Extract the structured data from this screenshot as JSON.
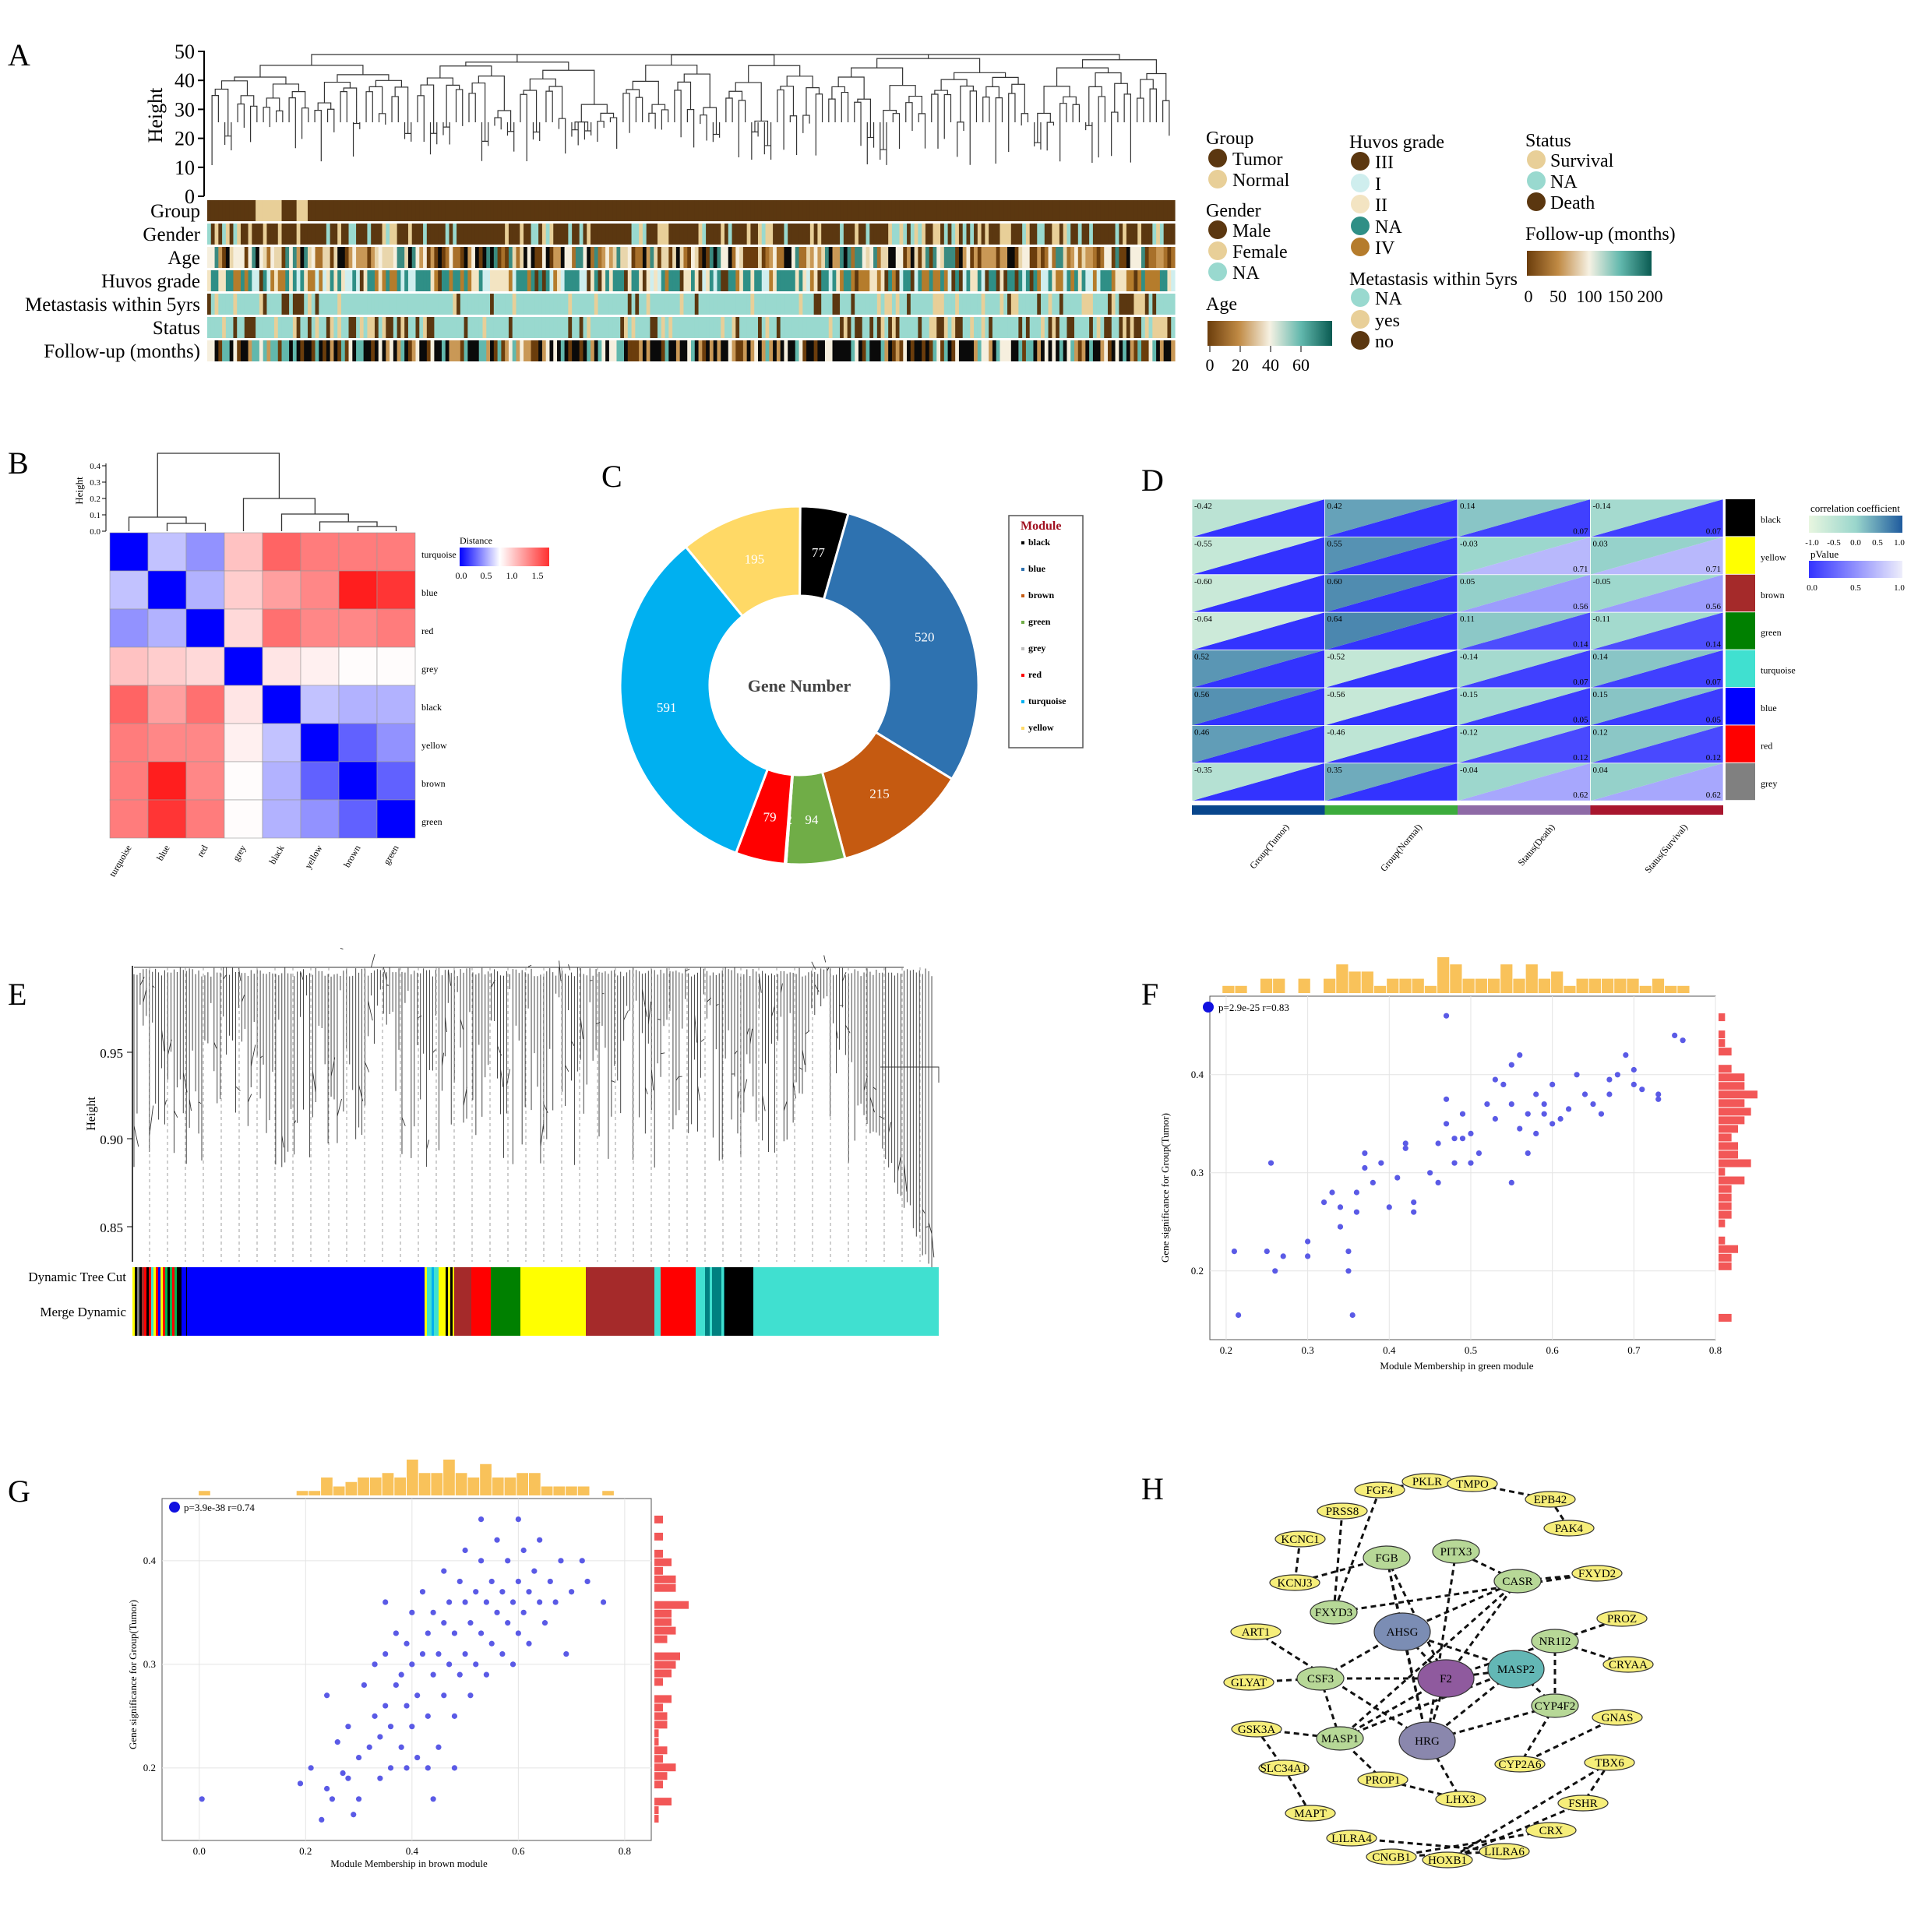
{
  "panels": {
    "A": {
      "label": "A",
      "height_axis": {
        "label": "Height",
        "ticks": [
          "0",
          "10",
          "20",
          "30",
          "40",
          "50"
        ]
      },
      "track_labels": [
        "Group",
        "Gender",
        "Age",
        "Huvos grade",
        "Metastasis within 5yrs",
        "Status",
        "Follow-up (months)"
      ],
      "legends": {
        "group": {
          "title": "Group",
          "items": [
            {
              "label": "Tumor",
              "color": "#5b3710"
            },
            {
              "label": "Normal",
              "color": "#e8cf98"
            }
          ]
        },
        "gender": {
          "title": "Gender",
          "items": [
            {
              "label": "Male",
              "color": "#5b3710"
            },
            {
              "label": "Female",
              "color": "#e8cf98"
            },
            {
              "label": "NA",
              "color": "#99d9cf"
            }
          ]
        },
        "age": {
          "title": "Age",
          "ticks": [
            "0",
            "20",
            "40",
            "60"
          ]
        },
        "huvos": {
          "title": "Huvos grade",
          "items": [
            {
              "label": "III",
              "color": "#5b3710"
            },
            {
              "label": "I",
              "color": "#cfeeee"
            },
            {
              "label": "II",
              "color": "#f3e4c2"
            },
            {
              "label": "NA",
              "color": "#2f8f86"
            },
            {
              "label": "IV",
              "color": "#b57c2c"
            }
          ]
        },
        "metastasis": {
          "title": "Metastasis within 5yrs",
          "items": [
            {
              "label": "NA",
              "color": "#99d9cf"
            },
            {
              "label": "yes",
              "color": "#e8cf98"
            },
            {
              "label": "no",
              "color": "#5b3710"
            }
          ]
        },
        "status": {
          "title": "Status",
          "items": [
            {
              "label": "Survival",
              "color": "#e8cf98"
            },
            {
              "label": "NA",
              "color": "#99d9cf"
            },
            {
              "label": "Death",
              "color": "#5b3710"
            }
          ]
        },
        "followup": {
          "title": "Follow-up (months)",
          "ticks": [
            "0",
            "50",
            "100",
            "150",
            "200"
          ]
        }
      }
    },
    "B": {
      "label": "B",
      "height_axis": {
        "label": "Height",
        "ticks": [
          "0.0",
          "0.1",
          "0.2",
          "0.3",
          "0.4"
        ]
      },
      "legend_title": "Distance",
      "legend_ticks": [
        "0.0",
        "0.5",
        "1.0",
        "1.5"
      ]
    },
    "C": {
      "label": "C",
      "center_label": "Gene Number",
      "legend_title": "Module"
    },
    "D": {
      "label": "D",
      "columns": [
        "Group(Tumor)",
        "Group(Normal)",
        "Status(Death)",
        "Status(Survival)"
      ],
      "legend_title_1": "correlation coefficient",
      "legend_ticks_1": [
        "-1.0",
        "-0.5",
        "0.0",
        "0.5",
        "1.0"
      ],
      "legend_title_2": "pValue",
      "legend_ticks_2": [
        "0.0",
        "0.5",
        "1.0"
      ]
    },
    "E": {
      "label": "E",
      "y_label": "Height",
      "y_ticks": [
        "0.85",
        "0.90",
        "0.95"
      ],
      "row_labels": [
        "Dynamic Tree Cut",
        "Merge Dynamic"
      ]
    },
    "F": {
      "label": "F",
      "legend": "p=2.9e-25 r=0.83",
      "xlabel": "Module Membership in green module",
      "ylabel": "Gene significance for Group(Tumor)"
    },
    "G": {
      "label": "G",
      "legend": "p=3.9e-38 r=0.74",
      "xlabel": "Module Membership in brown module",
      "ylabel": "Gene significance for Group(Tumor)"
    },
    "H": {
      "label": "H",
      "nodes": [
        "FGF4",
        "PKLR",
        "TMPO",
        "EPB42",
        "PRSS8",
        "PAK4",
        "KCNC1",
        "FGB",
        "PITX3",
        "CASR",
        "FXYD2",
        "KCNJ3",
        "FXYD3",
        "AHSG",
        "PROZ",
        "ART1",
        "NR1I2",
        "CRYAA",
        "CSF3",
        "F2",
        "MASP2",
        "GLYAT",
        "CYP4F2",
        "GSK3A",
        "HRG",
        "GNAS",
        "MASP1",
        "SLC34A1",
        "PROP1",
        "CYP2A6",
        "TBX6",
        "LHX3",
        "FSHR",
        "MAPT",
        "CRX",
        "LILRA4",
        "CNGB1",
        "HOXB1",
        "LILRA6"
      ]
    }
  },
  "chart_data": [
    {
      "panel": "C",
      "type": "pie",
      "title": "Gene Number",
      "legend_title": "Module",
      "categories": [
        "black",
        "blue",
        "brown",
        "green",
        "grey",
        "red",
        "turquoise",
        "yellow"
      ],
      "values": [
        77,
        520,
        215,
        94,
        2,
        79,
        591,
        195
      ],
      "colors": [
        "#000000",
        "#2e72b0",
        "#c55a11",
        "#70ad47",
        "#bfbfbf",
        "#ff0000",
        "#00b0f0",
        "#ffd966"
      ]
    },
    {
      "panel": "B",
      "type": "heatmap",
      "rows": [
        "turquoise",
        "blue",
        "red",
        "grey",
        "black",
        "yellow",
        "brown",
        "green"
      ],
      "columns": [
        "turquoise",
        "blue",
        "red",
        "grey",
        "black",
        "yellow",
        "brown",
        "green"
      ],
      "values": [
        [
          0.0,
          0.6,
          0.45,
          1.05,
          1.45,
          1.35,
          1.35,
          1.35
        ],
        [
          0.6,
          0.0,
          0.55,
          1.0,
          1.2,
          1.3,
          1.75,
          1.65
        ],
        [
          0.45,
          0.55,
          0.0,
          0.95,
          1.4,
          1.3,
          1.3,
          1.35
        ],
        [
          1.05,
          1.0,
          0.95,
          0.0,
          0.9,
          0.85,
          0.8,
          0.8
        ],
        [
          1.45,
          1.2,
          1.4,
          0.9,
          0.0,
          0.6,
          0.55,
          0.55
        ],
        [
          1.35,
          1.3,
          1.3,
          0.85,
          0.6,
          0.0,
          0.3,
          0.45
        ],
        [
          1.35,
          1.75,
          1.3,
          0.8,
          0.55,
          0.3,
          0.0,
          0.3
        ],
        [
          1.35,
          1.65,
          1.35,
          0.8,
          0.55,
          0.45,
          0.3,
          0.0
        ]
      ]
    },
    {
      "panel": "D",
      "type": "heatmap",
      "rows": [
        "black",
        "yellow",
        "brown",
        "green",
        "turquoise",
        "blue",
        "red",
        "grey"
      ],
      "columns": [
        "Group(Tumor)",
        "Group(Normal)",
        "Status(Death)",
        "Status(Survival)"
      ],
      "correlation": [
        [
          -0.42,
          0.42,
          0.14,
          -0.14
        ],
        [
          -0.55,
          0.55,
          -0.03,
          0.03
        ],
        [
          -0.6,
          0.6,
          0.05,
          -0.05
        ],
        [
          -0.64,
          0.64,
          0.11,
          -0.11
        ],
        [
          0.52,
          -0.52,
          -0.14,
          0.14
        ],
        [
          0.56,
          -0.56,
          -0.15,
          0.15
        ],
        [
          0.46,
          -0.46,
          -0.12,
          0.12
        ],
        [
          -0.35,
          0.35,
          -0.04,
          0.04
        ]
      ],
      "pvalue_labels": [
        [
          "",
          "",
          "0.07",
          "0.07"
        ],
        [
          "",
          "",
          "0.71",
          "0.71"
        ],
        [
          "",
          "",
          "0.56",
          "0.56"
        ],
        [
          "",
          "",
          "0.14",
          "0.14"
        ],
        [
          "",
          "",
          "0.07",
          "0.07"
        ],
        [
          "",
          "",
          "0.05",
          "0.05"
        ],
        [
          "",
          "",
          "0.12",
          "0.12"
        ],
        [
          "",
          "",
          "0.62",
          "0.62"
        ]
      ],
      "row_colors": [
        "#000000",
        "#ffff00",
        "#a52a2a",
        "#008000",
        "#40e0d0",
        "#0000ff",
        "#ff0000",
        "#808080"
      ],
      "column_bar_colors": [
        "#08468c",
        "#3cab3c",
        "#8e6aa6",
        "#a8162e"
      ]
    },
    {
      "panel": "F",
      "type": "scatter",
      "xlabel": "Module Membership in green module",
      "ylabel": "Gene significance for Group(Tumor)",
      "xlim": [
        0.18,
        0.8
      ],
      "ylim": [
        0.13,
        0.48
      ],
      "x_ticks": [
        0.2,
        0.3,
        0.4,
        0.5,
        0.6,
        0.7,
        0.8
      ],
      "y_ticks": [
        0.2,
        0.3,
        0.4
      ],
      "legend": "p=2.9e-25 r=0.83",
      "points": [
        [
          0.21,
          0.22
        ],
        [
          0.215,
          0.155
        ],
        [
          0.25,
          0.22
        ],
        [
          0.26,
          0.2
        ],
        [
          0.255,
          0.31
        ],
        [
          0.27,
          0.215
        ],
        [
          0.3,
          0.23
        ],
        [
          0.3,
          0.215
        ],
        [
          0.32,
          0.27
        ],
        [
          0.33,
          0.28
        ],
        [
          0.34,
          0.265
        ],
        [
          0.34,
          0.245
        ],
        [
          0.35,
          0.22
        ],
        [
          0.35,
          0.2
        ],
        [
          0.355,
          0.155
        ],
        [
          0.36,
          0.28
        ],
        [
          0.36,
          0.26
        ],
        [
          0.37,
          0.32
        ],
        [
          0.37,
          0.305
        ],
        [
          0.38,
          0.29
        ],
        [
          0.39,
          0.31
        ],
        [
          0.4,
          0.265
        ],
        [
          0.41,
          0.295
        ],
        [
          0.42,
          0.325
        ],
        [
          0.42,
          0.33
        ],
        [
          0.43,
          0.27
        ],
        [
          0.43,
          0.26
        ],
        [
          0.45,
          0.3
        ],
        [
          0.46,
          0.29
        ],
        [
          0.46,
          0.33
        ],
        [
          0.47,
          0.35
        ],
        [
          0.47,
          0.375
        ],
        [
          0.48,
          0.31
        ],
        [
          0.48,
          0.335
        ],
        [
          0.49,
          0.335
        ],
        [
          0.49,
          0.36
        ],
        [
          0.5,
          0.31
        ],
        [
          0.5,
          0.34
        ],
        [
          0.51,
          0.32
        ],
        [
          0.52,
          0.37
        ],
        [
          0.53,
          0.355
        ],
        [
          0.54,
          0.39
        ],
        [
          0.55,
          0.41
        ],
        [
          0.55,
          0.37
        ],
        [
          0.56,
          0.42
        ],
        [
          0.56,
          0.345
        ],
        [
          0.57,
          0.36
        ],
        [
          0.57,
          0.32
        ],
        [
          0.58,
          0.38
        ],
        [
          0.58,
          0.34
        ],
        [
          0.59,
          0.37
        ],
        [
          0.59,
          0.36
        ],
        [
          0.6,
          0.35
        ],
        [
          0.6,
          0.39
        ],
        [
          0.61,
          0.355
        ],
        [
          0.62,
          0.365
        ],
        [
          0.63,
          0.4
        ],
        [
          0.64,
          0.38
        ],
        [
          0.65,
          0.37
        ],
        [
          0.66,
          0.36
        ],
        [
          0.67,
          0.395
        ],
        [
          0.67,
          0.38
        ],
        [
          0.68,
          0.4
        ],
        [
          0.69,
          0.42
        ],
        [
          0.7,
          0.39
        ],
        [
          0.7,
          0.405
        ],
        [
          0.71,
          0.385
        ],
        [
          0.73,
          0.375
        ],
        [
          0.73,
          0.38
        ],
        [
          0.75,
          0.44
        ],
        [
          0.76,
          0.435
        ],
        [
          0.47,
          0.46
        ],
        [
          0.55,
          0.29
        ],
        [
          0.53,
          0.395
        ]
      ]
    },
    {
      "panel": "G",
      "type": "scatter",
      "xlabel": "Module Membership in brown module",
      "ylabel": "Gene significance for Group(Tumor)",
      "xlim": [
        -0.07,
        0.85
      ],
      "ylim": [
        0.13,
        0.46
      ],
      "x_ticks": [
        0.0,
        0.2,
        0.4,
        0.6,
        0.8
      ],
      "y_ticks": [
        0.2,
        0.3,
        0.4
      ],
      "legend": "p=3.9e-38 r=0.74",
      "points": [
        [
          0.005,
          0.17
        ],
        [
          0.19,
          0.185
        ],
        [
          0.21,
          0.2
        ],
        [
          0.23,
          0.15
        ],
        [
          0.24,
          0.18
        ],
        [
          0.25,
          0.17
        ],
        [
          0.24,
          0.27
        ],
        [
          0.26,
          0.225
        ],
        [
          0.27,
          0.195
        ],
        [
          0.28,
          0.24
        ],
        [
          0.29,
          0.155
        ],
        [
          0.3,
          0.21
        ],
        [
          0.3,
          0.17
        ],
        [
          0.31,
          0.28
        ],
        [
          0.32,
          0.22
        ],
        [
          0.33,
          0.25
        ],
        [
          0.33,
          0.3
        ],
        [
          0.34,
          0.19
        ],
        [
          0.34,
          0.23
        ],
        [
          0.35,
          0.26
        ],
        [
          0.35,
          0.31
        ],
        [
          0.36,
          0.2
        ],
        [
          0.36,
          0.24
        ],
        [
          0.37,
          0.28
        ],
        [
          0.37,
          0.33
        ],
        [
          0.38,
          0.22
        ],
        [
          0.38,
          0.29
        ],
        [
          0.39,
          0.26
        ],
        [
          0.39,
          0.32
        ],
        [
          0.4,
          0.24
        ],
        [
          0.4,
          0.3
        ],
        [
          0.4,
          0.35
        ],
        [
          0.41,
          0.21
        ],
        [
          0.41,
          0.27
        ],
        [
          0.42,
          0.31
        ],
        [
          0.42,
          0.37
        ],
        [
          0.43,
          0.25
        ],
        [
          0.43,
          0.33
        ],
        [
          0.44,
          0.29
        ],
        [
          0.44,
          0.35
        ],
        [
          0.45,
          0.22
        ],
        [
          0.45,
          0.31
        ],
        [
          0.46,
          0.27
        ],
        [
          0.46,
          0.34
        ],
        [
          0.46,
          0.39
        ],
        [
          0.47,
          0.3
        ],
        [
          0.47,
          0.36
        ],
        [
          0.48,
          0.25
        ],
        [
          0.48,
          0.33
        ],
        [
          0.49,
          0.29
        ],
        [
          0.49,
          0.38
        ],
        [
          0.5,
          0.31
        ],
        [
          0.5,
          0.36
        ],
        [
          0.5,
          0.41
        ],
        [
          0.51,
          0.27
        ],
        [
          0.51,
          0.34
        ],
        [
          0.52,
          0.3
        ],
        [
          0.52,
          0.37
        ],
        [
          0.53,
          0.33
        ],
        [
          0.53,
          0.4
        ],
        [
          0.54,
          0.29
        ],
        [
          0.54,
          0.36
        ],
        [
          0.55,
          0.32
        ],
        [
          0.55,
          0.38
        ],
        [
          0.56,
          0.35
        ],
        [
          0.56,
          0.42
        ],
        [
          0.57,
          0.31
        ],
        [
          0.57,
          0.37
        ],
        [
          0.58,
          0.34
        ],
        [
          0.58,
          0.4
        ],
        [
          0.59,
          0.3
        ],
        [
          0.59,
          0.36
        ],
        [
          0.6,
          0.38
        ],
        [
          0.6,
          0.33
        ],
        [
          0.61,
          0.41
        ],
        [
          0.61,
          0.35
        ],
        [
          0.62,
          0.37
        ],
        [
          0.62,
          0.32
        ],
        [
          0.63,
          0.39
        ],
        [
          0.64,
          0.36
        ],
        [
          0.64,
          0.42
        ],
        [
          0.65,
          0.34
        ],
        [
          0.66,
          0.38
        ],
        [
          0.67,
          0.36
        ],
        [
          0.68,
          0.4
        ],
        [
          0.69,
          0.31
        ],
        [
          0.7,
          0.37
        ],
        [
          0.72,
          0.4
        ],
        [
          0.73,
          0.38
        ],
        [
          0.76,
          0.36
        ],
        [
          0.53,
          0.44
        ],
        [
          0.6,
          0.44
        ],
        [
          0.35,
          0.36
        ],
        [
          0.28,
          0.19
        ],
        [
          0.48,
          0.2
        ],
        [
          0.44,
          0.17
        ],
        [
          0.39,
          0.2
        ],
        [
          0.43,
          0.2
        ]
      ]
    }
  ]
}
